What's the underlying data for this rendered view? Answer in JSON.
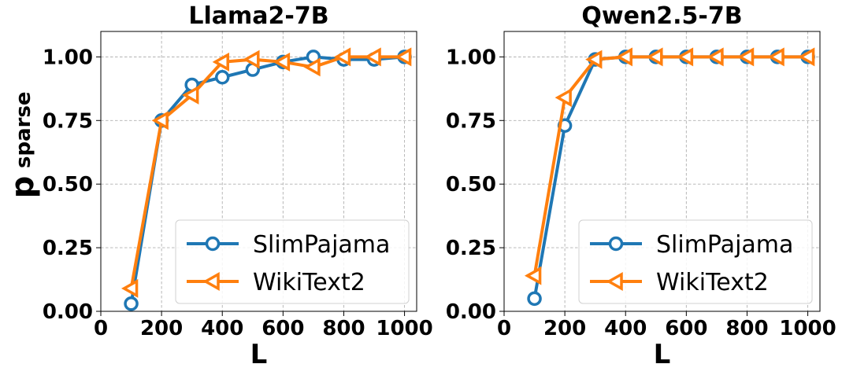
{
  "chart_data": [
    {
      "type": "line",
      "title": "Llama2-7B",
      "xlabel": "L",
      "ylabel": "p",
      "ylabel_sub": "sparse",
      "xlim": [
        0,
        1040
      ],
      "ylim": [
        0,
        1.1
      ],
      "xticks": [
        0,
        200,
        400,
        600,
        800,
        1000
      ],
      "xtick_labels": [
        "0",
        "200",
        "400",
        "600",
        "800",
        "1000"
      ],
      "yticks": [
        0,
        0.25,
        0.5,
        0.75,
        1.0
      ],
      "ytick_labels": [
        "0.00",
        "0.25",
        "0.50",
        "0.75",
        "1.00"
      ],
      "grid": true,
      "legend_position": "lower-right",
      "series": [
        {
          "name": "SlimPajama",
          "marker": "circle",
          "color": "#1f77b4",
          "x": [
            100,
            200,
            300,
            400,
            500,
            600,
            700,
            800,
            900,
            1000
          ],
          "values": [
            0.03,
            0.75,
            0.89,
            0.92,
            0.95,
            0.98,
            1.0,
            0.99,
            0.99,
            1.0
          ]
        },
        {
          "name": "WikiText2",
          "marker": "triangle-left",
          "color": "#ff7f0e",
          "x": [
            100,
            200,
            300,
            400,
            500,
            600,
            700,
            800,
            900,
            1000
          ],
          "values": [
            0.09,
            0.75,
            0.85,
            0.98,
            0.99,
            0.98,
            0.96,
            1.0,
            1.0,
            1.0
          ]
        }
      ]
    },
    {
      "type": "line",
      "title": "Qwen2.5-7B",
      "xlabel": "L",
      "ylabel": "",
      "ylabel_sub": "",
      "xlim": [
        0,
        1040
      ],
      "ylim": [
        0,
        1.1
      ],
      "xticks": [
        0,
        200,
        400,
        600,
        800,
        1000
      ],
      "xtick_labels": [
        "0",
        "200",
        "400",
        "600",
        "800",
        "1000"
      ],
      "yticks": [
        0,
        0.25,
        0.5,
        0.75,
        1.0
      ],
      "ytick_labels": [
        "0.00",
        "0.25",
        "0.50",
        "0.75",
        "1.00"
      ],
      "grid": true,
      "legend_position": "lower-right",
      "series": [
        {
          "name": "SlimPajama",
          "marker": "circle",
          "color": "#1f77b4",
          "x": [
            100,
            200,
            300,
            400,
            500,
            600,
            700,
            800,
            900,
            1000
          ],
          "values": [
            0.05,
            0.73,
            0.99,
            1.0,
            1.0,
            1.0,
            1.0,
            1.0,
            1.0,
            1.0
          ]
        },
        {
          "name": "WikiText2",
          "marker": "triangle-left",
          "color": "#ff7f0e",
          "x": [
            100,
            200,
            300,
            400,
            500,
            600,
            700,
            800,
            900,
            1000
          ],
          "values": [
            0.14,
            0.84,
            0.99,
            1.0,
            1.0,
            1.0,
            1.0,
            1.0,
            1.0,
            1.0
          ]
        }
      ]
    }
  ]
}
